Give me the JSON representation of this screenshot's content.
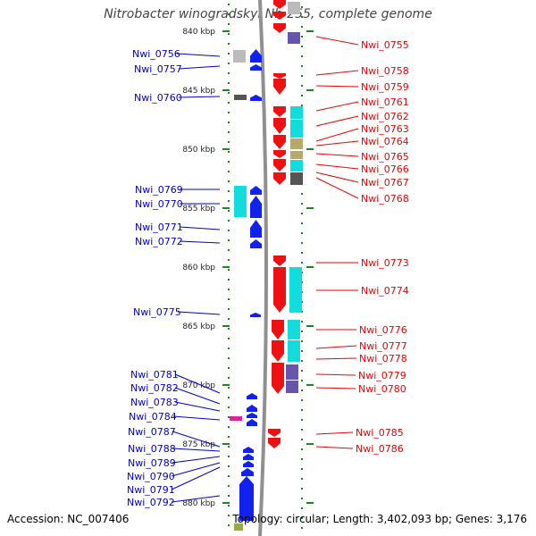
{
  "title": "Nitrobacter winogradskyi Nb-255, complete genome",
  "accession": "Accession: NC_007406",
  "stats": "Topology: circular; Length: 3,402,093 bp; Genes: 3,176",
  "colors": {
    "left_label": "#0000cc",
    "right_label": "#ee0000",
    "tick": "#1a8a1a",
    "backbone": "#909090"
  },
  "scale": {
    "unit": "kbp",
    "ticks": [
      {
        "label": "840 kbp",
        "pos": 840
      },
      {
        "label": "845 kbp",
        "pos": 845
      },
      {
        "label": "850 kbp",
        "pos": 850
      },
      {
        "label": "855 kbp",
        "pos": 855
      },
      {
        "label": "860 kbp",
        "pos": 860
      },
      {
        "label": "865 kbp",
        "pos": 865
      },
      {
        "label": "870 kbp",
        "pos": 870
      },
      {
        "label": "875 kbp",
        "pos": 875
      },
      {
        "label": "880 kbp",
        "pos": 880
      }
    ]
  },
  "left_genes": [
    {
      "label": "Nwi_0756"
    },
    {
      "label": "Nwi_0757"
    },
    {
      "label": "Nwi_0760"
    },
    {
      "label": "Nwi_0769"
    },
    {
      "label": "Nwi_0770"
    },
    {
      "label": "Nwi_0771"
    },
    {
      "label": "Nwi_0772"
    },
    {
      "label": "Nwi_0775"
    },
    {
      "label": "Nwi_0781"
    },
    {
      "label": "Nwi_0782"
    },
    {
      "label": "Nwi_0783"
    },
    {
      "label": "Nwi_0784"
    },
    {
      "label": "Nwi_0787"
    },
    {
      "label": "Nwi_0788"
    },
    {
      "label": "Nwi_0789"
    },
    {
      "label": "Nwi_0790"
    },
    {
      "label": "Nwi_0791"
    },
    {
      "label": "Nwi_0792"
    }
  ],
  "right_genes": [
    {
      "label": "Nwi_0755"
    },
    {
      "label": "Nwi_0758"
    },
    {
      "label": "Nwi_0759"
    },
    {
      "label": "Nwi_0761"
    },
    {
      "label": "Nwi_0762"
    },
    {
      "label": "Nwi_0763"
    },
    {
      "label": "Nwi_0764"
    },
    {
      "label": "Nwi_0765"
    },
    {
      "label": "Nwi_0766"
    },
    {
      "label": "Nwi_0767"
    },
    {
      "label": "Nwi_0768"
    },
    {
      "label": "Nwi_0773"
    },
    {
      "label": "Nwi_0774"
    },
    {
      "label": "Nwi_0776"
    },
    {
      "label": "Nwi_0777"
    },
    {
      "label": "Nwi_0778"
    },
    {
      "label": "Nwi_0779"
    },
    {
      "label": "Nwi_0780"
    },
    {
      "label": "Nwi_0785"
    },
    {
      "label": "Nwi_0786"
    }
  ]
}
